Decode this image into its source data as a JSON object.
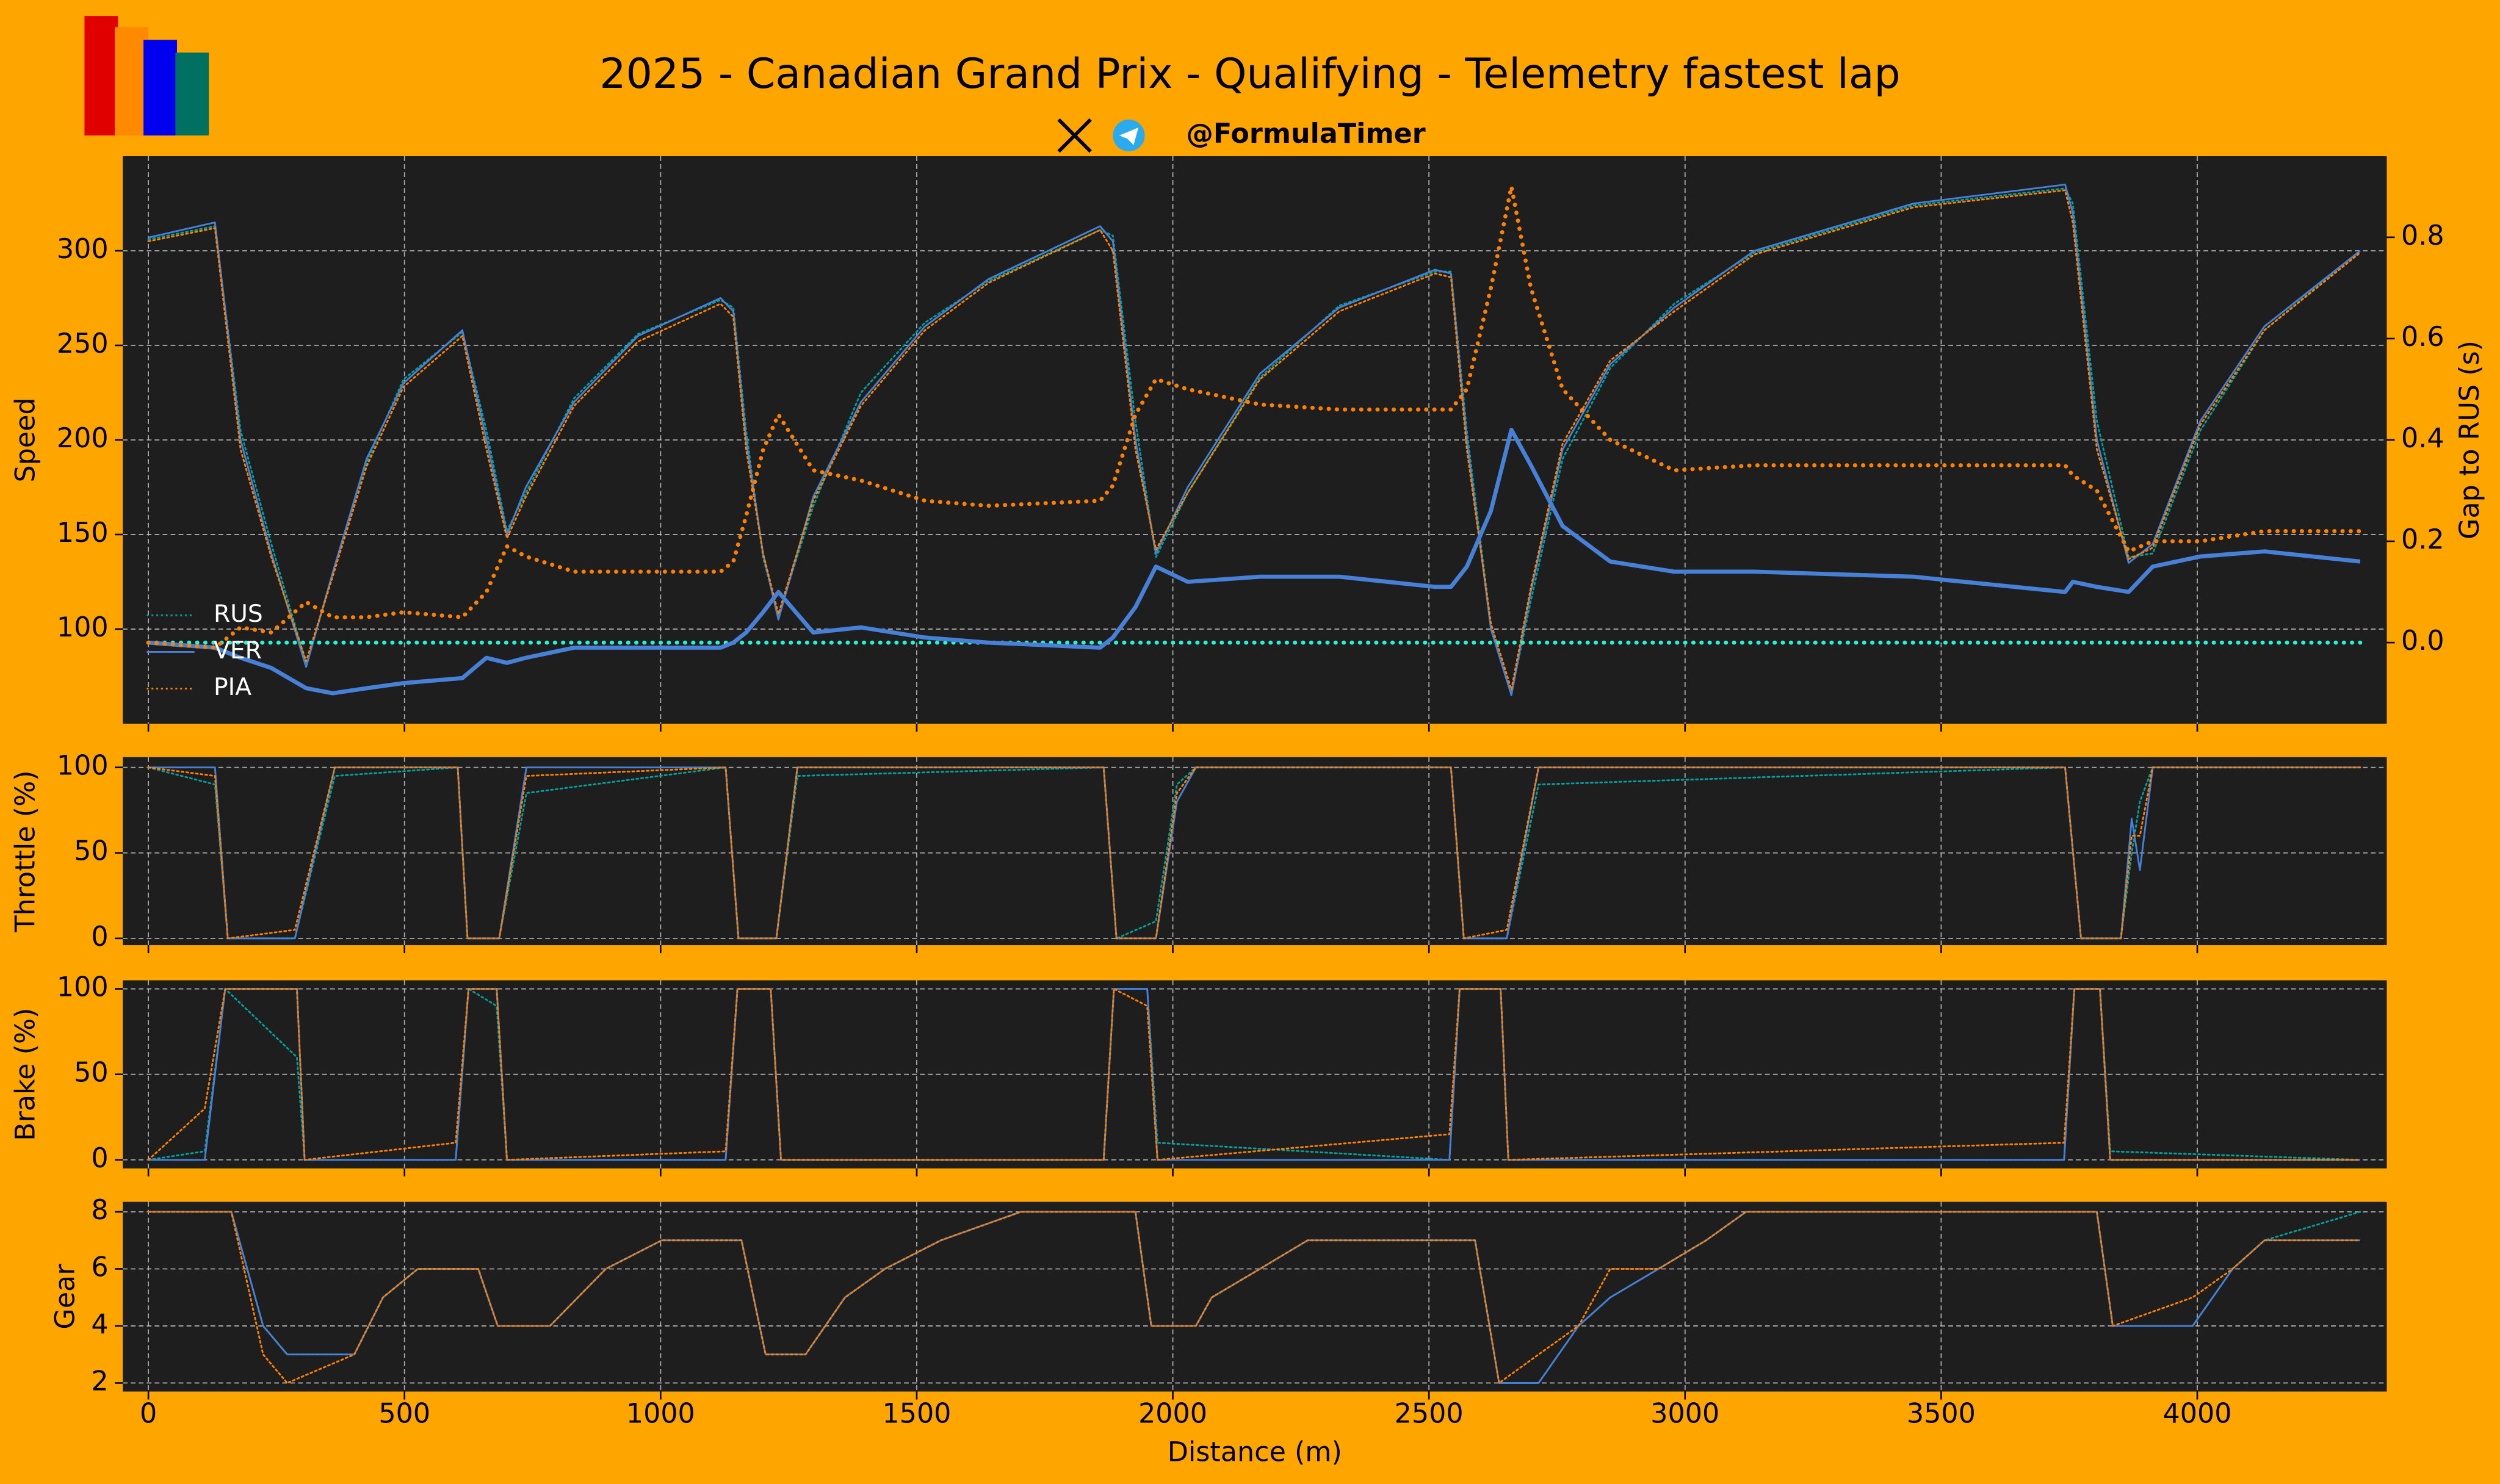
{
  "handle": "@FormulaTimer",
  "chart_data": [
    {
      "type": "line",
      "title": "2025 - Canadian Grand Prix - Qualifying - Telemetry fastest lap",
      "ylabel": "Speed",
      "y2label": "Gap to RUS (s)",
      "grid": true,
      "legend": "lower left",
      "xlim": [
        -50,
        4370
      ],
      "ylim": [
        50,
        350
      ],
      "yticks": [
        100,
        150,
        200,
        250,
        300
      ],
      "y2lim": [
        -0.16,
        0.96
      ],
      "y2ticks": [
        {
          "value": 0,
          "label": "0.0"
        },
        0.2,
        0.4,
        0.6,
        0.8
      ],
      "x": [
        0,
        130,
        180,
        240,
        308,
        360,
        426,
        498,
        613,
        660,
        700,
        737,
        831,
        956,
        1117,
        1142,
        1167,
        1200,
        1230,
        1298,
        1391,
        1516,
        1640,
        1858,
        1883,
        1927,
        1967,
        2029,
        2170,
        2325,
        2512,
        2543,
        2574,
        2621,
        2661,
        2699,
        2761,
        2854,
        2979,
        3135,
        3446,
        3742,
        3757,
        3804,
        3866,
        3913,
        4006,
        4131,
        4318
      ],
      "series": [
        {
          "name": "RUS",
          "color": "#00a19c",
          "linestyle": "dotted",
          "values": [
            306,
            313,
            205,
            145,
            82,
            128,
            188,
            232,
            257,
            205,
            152,
            172,
            222,
            256,
            274,
            270,
            205,
            138,
            107,
            165,
            225,
            262,
            284,
            311,
            308,
            210,
            138,
            172,
            233,
            271,
            289,
            289,
            205,
            102,
            66,
            115,
            190,
            238,
            272,
            299,
            324,
            333,
            325,
            210,
            138,
            140,
            205,
            258,
            300
          ]
        },
        {
          "name": "VER",
          "color": "#4781d7",
          "linestyle": "solid",
          "values": [
            307,
            315,
            200,
            140,
            80,
            130,
            190,
            230,
            258,
            200,
            150,
            175,
            220,
            255,
            275,
            268,
            200,
            140,
            105,
            170,
            220,
            260,
            285,
            313,
            305,
            200,
            140,
            175,
            235,
            270,
            290,
            288,
            200,
            100,
            65,
            120,
            195,
            240,
            270,
            300,
            325,
            335,
            320,
            200,
            135,
            145,
            210,
            260,
            300
          ]
        },
        {
          "name": "PIA",
          "color": "#ff8000",
          "linestyle": "dotted",
          "values": [
            305,
            312,
            195,
            138,
            83,
            128,
            186,
            228,
            255,
            195,
            148,
            170,
            218,
            252,
            272,
            265,
            195,
            140,
            108,
            168,
            218,
            258,
            283,
            311,
            300,
            195,
            142,
            172,
            232,
            268,
            288,
            286,
            195,
            103,
            68,
            122,
            198,
            242,
            268,
            298,
            323,
            332,
            315,
            195,
            137,
            143,
            208,
            258,
            299
          ]
        },
        {
          "axis": "y2",
          "color": "#27f4d2",
          "linestyle": "dotted",
          "values": [
            0,
            0,
            0,
            0,
            0,
            0,
            0,
            0,
            0,
            0,
            0,
            0,
            0,
            0,
            0,
            0,
            0,
            0,
            0,
            0,
            0,
            0,
            0,
            0,
            0,
            0,
            0,
            0,
            0,
            0,
            0,
            0,
            0,
            0,
            0,
            0,
            0,
            0,
            0,
            0,
            0,
            0,
            0,
            0,
            0,
            0,
            0,
            0,
            0
          ]
        },
        {
          "axis": "y2",
          "color": "#4781d7",
          "linestyle": "solid",
          "values": [
            0,
            -0.01,
            -0.03,
            -0.05,
            -0.09,
            -0.1,
            -0.09,
            -0.08,
            -0.07,
            -0.03,
            -0.04,
            -0.03,
            -0.01,
            -0.01,
            -0.01,
            0,
            0.02,
            0.06,
            0.1,
            0.02,
            0.03,
            0.01,
            0,
            -0.01,
            0.01,
            0.07,
            0.15,
            0.12,
            0.13,
            0.13,
            0.11,
            0.11,
            0.15,
            0.26,
            0.42,
            0.35,
            0.23,
            0.16,
            0.14,
            0.14,
            0.13,
            0.1,
            0.12,
            0.11,
            0.1,
            0.15,
            0.17,
            0.18,
            0.16
          ]
        },
        {
          "axis": "y2",
          "color": "#ff8000",
          "linestyle": "dotted",
          "values": [
            0,
            -0.01,
            0.03,
            0.02,
            0.08,
            0.05,
            0.05,
            0.06,
            0.05,
            0.1,
            0.19,
            0.17,
            0.14,
            0.14,
            0.14,
            0.16,
            0.25,
            0.38,
            0.45,
            0.34,
            0.32,
            0.28,
            0.27,
            0.28,
            0.31,
            0.45,
            0.52,
            0.5,
            0.47,
            0.46,
            0.46,
            0.46,
            0.5,
            0.7,
            0.9,
            0.7,
            0.5,
            0.4,
            0.34,
            0.35,
            0.35,
            0.35,
            0.33,
            0.3,
            0.18,
            0.2,
            0.2,
            0.22,
            0.22
          ]
        }
      ]
    },
    {
      "type": "line",
      "ylabel": "Throttle (%)",
      "grid": true,
      "xlim": [
        -50,
        4370
      ],
      "ylim": [
        -4,
        106
      ],
      "yticks": [
        0,
        50,
        100
      ],
      "x": [
        0,
        130,
        155,
        286,
        364,
        604,
        623,
        685,
        738,
        1127,
        1152,
        1226,
        1267,
        1865,
        1890,
        1967,
        2008,
        2045,
        2543,
        2568,
        2652,
        2714,
        3742,
        3773,
        3851,
        3872,
        3888,
        3913,
        4318
      ],
      "series": [
        {
          "color": "#00a19c",
          "linestyle": "dotted",
          "values": [
            100,
            90,
            0,
            0,
            95,
            100,
            0,
            0,
            85,
            100,
            0,
            0,
            95,
            100,
            0,
            10,
            90,
            100,
            100,
            0,
            0,
            90,
            100,
            0,
            0,
            50,
            80,
            100,
            100
          ]
        },
        {
          "color": "#4781d7",
          "linestyle": "solid",
          "values": [
            100,
            100,
            0,
            0,
            100,
            100,
            0,
            0,
            100,
            100,
            0,
            0,
            100,
            100,
            0,
            0,
            80,
            100,
            100,
            0,
            0,
            100,
            100,
            0,
            0,
            70,
            40,
            100,
            100
          ]
        },
        {
          "color": "#ff8000",
          "linestyle": "dotted",
          "values": [
            100,
            95,
            0,
            5,
            100,
            100,
            0,
            0,
            95,
            100,
            0,
            0,
            100,
            100,
            0,
            0,
            85,
            100,
            100,
            0,
            5,
            100,
            100,
            0,
            0,
            60,
            60,
            100,
            100
          ]
        }
      ]
    },
    {
      "type": "line",
      "ylabel": "Brake (%)",
      "grid": true,
      "xlim": [
        -50,
        4370
      ],
      "ylim": [
        -5,
        105
      ],
      "yticks": [
        0,
        50,
        100
      ],
      "x": [
        0,
        110,
        150,
        290,
        305,
        600,
        625,
        680,
        700,
        1127,
        1150,
        1215,
        1235,
        1865,
        1885,
        1950,
        1970,
        2540,
        2560,
        2640,
        2655,
        3740,
        3760,
        3810,
        3830,
        4318
      ],
      "series": [
        {
          "color": "#00a19c",
          "linestyle": "dotted",
          "values": [
            0,
            5,
            100,
            60,
            0,
            0,
            100,
            90,
            0,
            0,
            100,
            100,
            0,
            0,
            100,
            100,
            10,
            0,
            100,
            100,
            0,
            0,
            100,
            100,
            5,
            0
          ]
        },
        {
          "color": "#4781d7",
          "linestyle": "solid",
          "values": [
            0,
            0,
            100,
            100,
            0,
            0,
            100,
            100,
            0,
            0,
            100,
            100,
            0,
            0,
            100,
            100,
            0,
            0,
            100,
            100,
            0,
            0,
            100,
            100,
            0,
            0
          ]
        },
        {
          "color": "#ff8000",
          "linestyle": "dotted",
          "values": [
            0,
            30,
            100,
            100,
            0,
            10,
            100,
            100,
            0,
            5,
            100,
            100,
            0,
            0,
            100,
            90,
            0,
            15,
            100,
            100,
            0,
            10,
            100,
            100,
            0,
            0
          ]
        }
      ]
    },
    {
      "type": "line",
      "ylabel": "Gear",
      "xlabel": "Distance (m)",
      "grid": true,
      "xlim": [
        -50,
        4370
      ],
      "xticks": [
        0,
        500,
        1000,
        1500,
        2000,
        2500,
        3000,
        3500,
        4000
      ],
      "ylim": [
        1.7,
        8.35
      ],
      "yticks": [
        2,
        4,
        6,
        8
      ],
      "x": [
        0,
        162,
        224,
        271,
        402,
        458,
        526,
        644,
        682,
        784,
        893,
        1002,
        1158,
        1205,
        1283,
        1360,
        1438,
        1547,
        1703,
        1927,
        1958,
        2045,
        2076,
        2170,
        2263,
        2590,
        2637,
        2714,
        2792,
        2854,
        2948,
        3041,
        3119,
        3804,
        3835,
        3991,
        4069,
        4131,
        4318
      ],
      "series": [
        {
          "color": "#00a19c",
          "linestyle": "dotted",
          "values": [
            8,
            8,
            4,
            3,
            3,
            5,
            6,
            6,
            4,
            4,
            6,
            7,
            7,
            3,
            3,
            5,
            6,
            7,
            8,
            8,
            4,
            4,
            5,
            6,
            7,
            7,
            2,
            2,
            4,
            5,
            6,
            7,
            8,
            8,
            4,
            4,
            6,
            7,
            8
          ]
        },
        {
          "color": "#4781d7",
          "linestyle": "solid",
          "values": [
            8,
            8,
            4,
            3,
            3,
            5,
            6,
            6,
            4,
            4,
            6,
            7,
            7,
            3,
            3,
            5,
            6,
            7,
            8,
            8,
            4,
            4,
            5,
            6,
            7,
            7,
            2,
            2,
            4,
            5,
            6,
            7,
            8,
            8,
            4,
            4,
            6,
            7,
            7
          ]
        },
        {
          "color": "#ff8000",
          "linestyle": "dotted",
          "values": [
            8,
            8,
            3,
            2,
            3,
            5,
            6,
            6,
            4,
            4,
            6,
            7,
            7,
            3,
            3,
            5,
            6,
            7,
            8,
            8,
            4,
            4,
            5,
            6,
            7,
            7,
            2,
            3,
            4,
            6,
            6,
            7,
            8,
            8,
            4,
            5,
            6,
            7,
            7
          ]
        }
      ]
    }
  ]
}
